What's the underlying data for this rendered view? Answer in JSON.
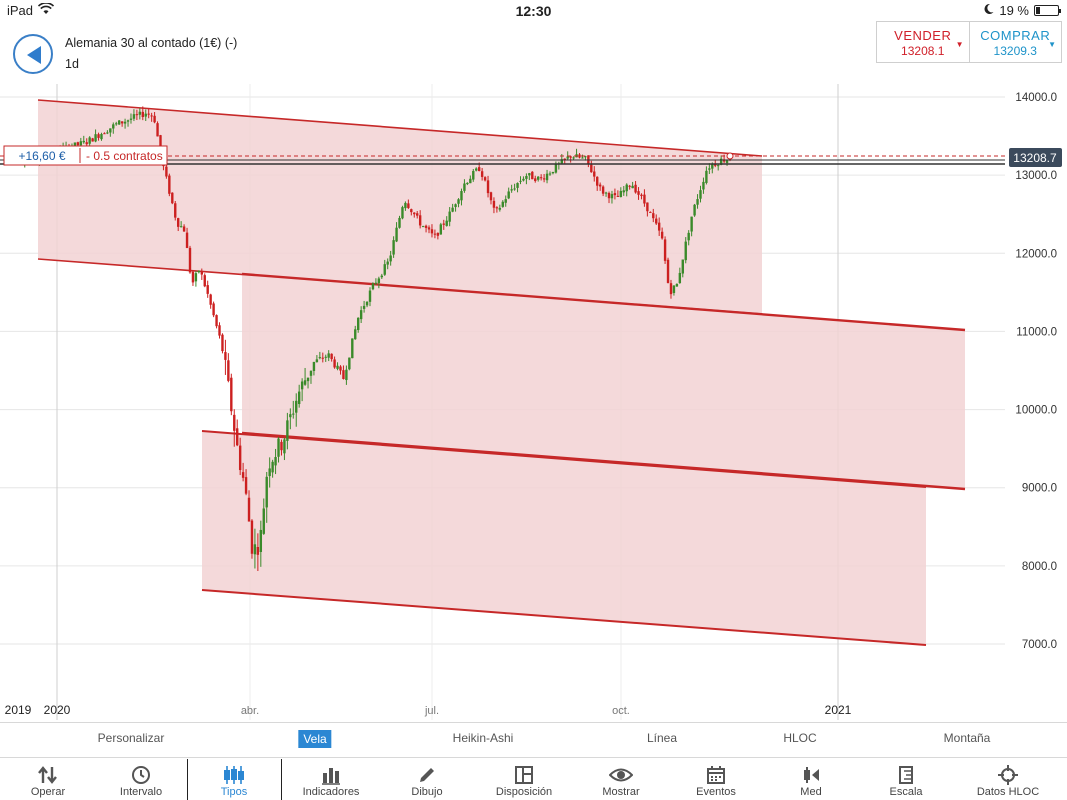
{
  "status": {
    "device": "iPad",
    "time": "12:30",
    "battery": "19 %",
    "battery_level": 0.19
  },
  "header": {
    "instrument": "Alemania 30 al contado (1€) (-)",
    "interval": "1d"
  },
  "trade": {
    "sell_label": "VENDER",
    "sell_price": "13208.1",
    "buy_label": "COMPRAR",
    "buy_price": "13209.3",
    "sell_color": "#d0202a",
    "buy_color": "#1e93c9"
  },
  "position": {
    "pnl": "+16,60 €",
    "contracts": "- 0.5 contratos"
  },
  "chart_data": {
    "type": "candlestick",
    "y_ticks": [
      "14000.0",
      "13000.0",
      "12000.0",
      "11000.0",
      "10000.0",
      "9000.0",
      "8000.0",
      "7000.0"
    ],
    "ylim": [
      6300,
      14300
    ],
    "x_ticks": [
      "2019",
      "2020",
      "abr.",
      "jul.",
      "oct.",
      "2021"
    ],
    "current_price": "13208.7",
    "current_price_value": 13208.7,
    "up_color": "#3a8a2a",
    "down_color": "#cc2020",
    "channel_color": "#c62828",
    "channel_fill": "#f2d2d4",
    "price_path": [
      [
        1,
        13150
      ],
      [
        3,
        13300
      ],
      [
        5,
        13420
      ],
      [
        7,
        13650
      ],
      [
        9,
        13800
      ],
      [
        9.5,
        13750
      ],
      [
        10,
        13200
      ],
      [
        11,
        12400
      ],
      [
        11.5,
        12300
      ],
      [
        12,
        11600
      ],
      [
        12.5,
        11800
      ],
      [
        13,
        11500
      ],
      [
        14,
        10800
      ],
      [
        15,
        9500
      ],
      [
        15.5,
        9000
      ],
      [
        16,
        8200
      ],
      [
        16.5,
        8300
      ],
      [
        17,
        9300
      ],
      [
        18,
        9600
      ],
      [
        19,
        10200
      ],
      [
        20,
        10600
      ],
      [
        21,
        10700
      ],
      [
        22,
        10400
      ],
      [
        23,
        11200
      ],
      [
        24,
        11600
      ],
      [
        25,
        11900
      ],
      [
        26,
        12700
      ],
      [
        27,
        12400
      ],
      [
        28,
        12200
      ],
      [
        29,
        12500
      ],
      [
        30,
        12900
      ],
      [
        31,
        13100
      ],
      [
        32,
        12500
      ],
      [
        33,
        12800
      ],
      [
        34,
        13000
      ],
      [
        35,
        12950
      ],
      [
        36,
        13100
      ],
      [
        37,
        13250
      ],
      [
        38,
        13200
      ],
      [
        39,
        12800
      ],
      [
        40,
        12700
      ],
      [
        41,
        12900
      ],
      [
        42,
        12600
      ],
      [
        43,
        12200
      ],
      [
        43.5,
        11500
      ],
      [
        44,
        11600
      ],
      [
        45,
        12500
      ],
      [
        46,
        13100
      ],
      [
        47,
        13200
      ],
      [
        47.5,
        13210
      ]
    ]
  },
  "types": {
    "options": [
      "Personalizar",
      "Vela",
      "Heikin-Ashi",
      "Línea",
      "HLOC",
      "Montaña"
    ],
    "active_index": 1
  },
  "tabs": {
    "items": [
      {
        "label": "Operar",
        "icon": "trade-arrows-icon"
      },
      {
        "label": "Intervalo",
        "icon": "clock-icon"
      },
      {
        "label": "Tipos",
        "icon": "candles-icon"
      },
      {
        "label": "Indicadores",
        "icon": "bar-chart-icon"
      },
      {
        "label": "Dibujo",
        "icon": "pencil-icon"
      },
      {
        "label": "Disposición",
        "icon": "layout-icon"
      },
      {
        "label": "Mostrar",
        "icon": "eye-icon"
      },
      {
        "label": "Eventos",
        "icon": "calendar-icon"
      },
      {
        "label": "Med",
        "icon": "measure-icon"
      },
      {
        "label": "Escala",
        "icon": "scale-icon"
      },
      {
        "label": "Datos HLOC",
        "icon": "crosshair-icon"
      }
    ],
    "active_index": 2,
    "accent": "#2b87d3"
  }
}
